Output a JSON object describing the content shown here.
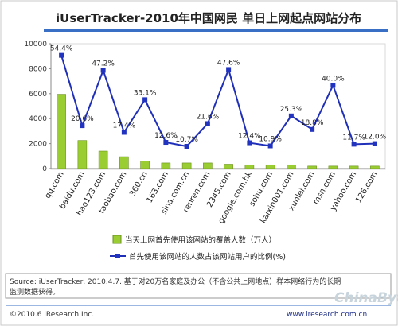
{
  "page": {
    "title": "iUserTracker-2010年中国网民 单日上网起点网站分布",
    "source": "Source: iUserTracker, 2010.4.7. 基于对20万名家庭及办公（不含公共上网地点）样本网络行为的长期",
    "source_line2": "监测数据获得。",
    "footer_left": "©2010.6 iResearch Inc.",
    "footer_right": "www.iresearch.com.cn",
    "watermark": "ChinaByte"
  },
  "colors": {
    "bar": "#9acd32",
    "bar_edge": "#6b9020",
    "line": "#1f2fb8",
    "marker": "#2233c0",
    "title_bar": "#3a6fc6"
  },
  "chart_data": {
    "type": "bar",
    "title": "iUserTracker-2010年中国网民 单日上网起点网站分布",
    "categories": [
      "qq.com",
      "baidu.com",
      "hao123.com",
      "taobao.com",
      "360.cn",
      "163.com",
      "sina.com.cn",
      "renren.com",
      "2345.com",
      "google.com.hk",
      "sohu.com",
      "kaixin001.com",
      "xunlei.com",
      "msn.com",
      "yahoo.com",
      "126.com"
    ],
    "y_ticks": [
      "0",
      "2000",
      "4000",
      "6000",
      "8000",
      "10000"
    ],
    "ylim": [
      0,
      10000
    ],
    "ylim_right_note": "",
    "series": [
      {
        "name": "当天上网首先使用该网站的覆盖人数（万人）",
        "type": "bar",
        "values": [
          5950,
          2250,
          1400,
          950,
          600,
          450,
          450,
          450,
          350,
          300,
          300,
          300,
          200,
          200,
          200,
          200
        ]
      },
      {
        "name": "首先使用该网站的人数占该网站用户的比例(%)",
        "type": "line",
        "values": [
          54.4,
          20.6,
          47.2,
          17.4,
          33.1,
          12.6,
          10.7,
          21.6,
          47.6,
          12.4,
          10.9,
          25.3,
          18.8,
          40.0,
          11.7,
          12.0
        ],
        "labels": [
          "54.4%",
          "20.6%",
          "47.2%",
          "17.4%",
          "33.1%",
          "12.6%",
          "10.7%",
          "21.6%",
          "47.6%",
          "12.4%",
          "10.9%",
          "25.3%",
          "18.8%",
          "40.0%",
          "11.7%",
          "12.0%"
        ]
      }
    ],
    "grid": false,
    "legend_position": "bottom"
  }
}
